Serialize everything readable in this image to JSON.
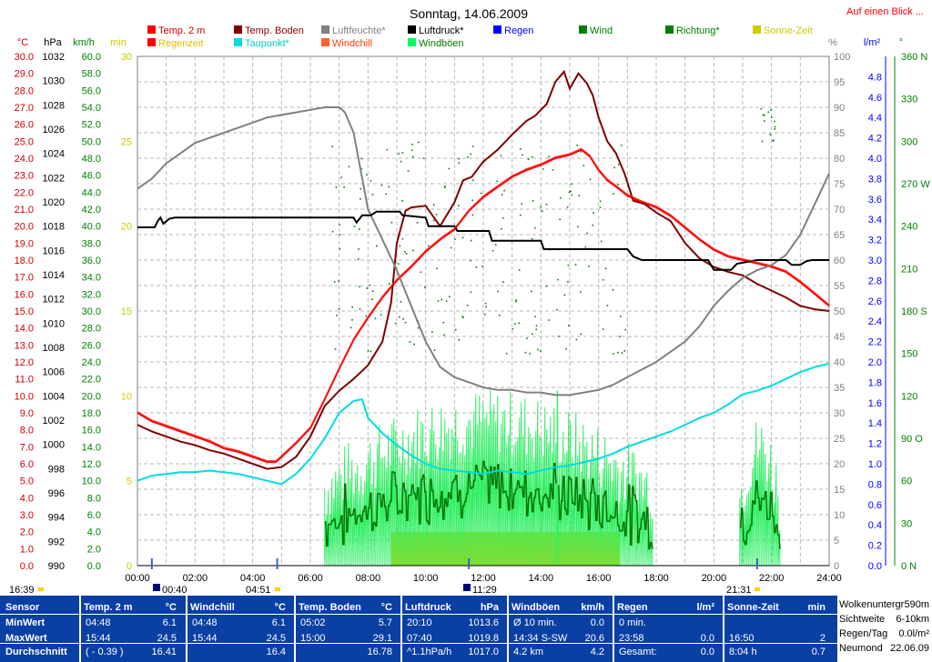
{
  "title": "Sonntag, 14.06.2009",
  "top_link": "Auf einen Blick ...",
  "legend": [
    {
      "label": "Temp. 2 m",
      "color": "#ff0000",
      "text_color": "#cc0000"
    },
    {
      "label": "Temp. Boden",
      "color": "#800000",
      "text_color": "#800000"
    },
    {
      "label": "Luftfeuchte*",
      "color": "#808080",
      "text_color": "#808080"
    },
    {
      "label": "Luftdruck*",
      "color": "#000000",
      "text_color": "#000000"
    },
    {
      "label": "Regen",
      "color": "#0000ff",
      "text_color": "#0000ff"
    },
    {
      "label": "Wind",
      "color": "#008000",
      "text_color": "#008000"
    },
    {
      "label": "Richtung*",
      "color": "#008000",
      "text_color": "#008000"
    },
    {
      "label": "Sonne-Zeit",
      "color": "#cccc00",
      "text_color": "#cccc00"
    },
    {
      "label": "Regenzeit",
      "color": "#ff0000",
      "text_color": "#e0c000"
    },
    {
      "label": "Taupunkt*",
      "color": "#00dddd",
      "text_color": "#00cccc"
    },
    {
      "label": "Windchill",
      "color": "#ff6030",
      "text_color": "#ff4000"
    },
    {
      "label": "Windböen",
      "color": "#00ff60",
      "text_color": "#008000"
    }
  ],
  "axis_units": {
    "temp": "°C",
    "pressure": "hPa",
    "wind": "km/h",
    "minutes": "min",
    "humidity": "%",
    "rain": "l/m²",
    "direction": "°",
    "direction_max": "360 N"
  },
  "axis_ticks": {
    "temp": [
      "30.0",
      "29.0",
      "28.0",
      "27.0",
      "26.0",
      "25.0",
      "24.0",
      "23.0",
      "22.0",
      "21.0",
      "20.0",
      "19.0",
      "18.0",
      "17.0",
      "16.0",
      "15.0",
      "14.0",
      "13.0",
      "12.0",
      "11.0",
      "10.0",
      "9.0",
      "8.0",
      "7.0",
      "6.0",
      "5.0",
      "4.0",
      "3.0",
      "2.0",
      "1.0",
      "0.0"
    ],
    "pressure": [
      "1032",
      "1030",
      "1028",
      "1026",
      "1024",
      "1022",
      "1020",
      "1018",
      "1016",
      "1014",
      "1012",
      "1010",
      "1008",
      "1006",
      "1004",
      "1002",
      "1000",
      "998",
      "996",
      "994",
      "992",
      "990"
    ],
    "wind": [
      "60.0",
      "58.0",
      "56.0",
      "54.0",
      "52.0",
      "50.0",
      "48.0",
      "46.0",
      "44.0",
      "42.0",
      "40.0",
      "38.0",
      "36.0",
      "34.0",
      "32.0",
      "30.0",
      "28.0",
      "26.0",
      "24.0",
      "22.0",
      "20.0",
      "18.0",
      "16.0",
      "14.0",
      "12.0",
      "10.0",
      "8.0",
      "6.0",
      "4.0",
      "2.0",
      "0.0"
    ],
    "minutes": [
      "30",
      "25",
      "20",
      "15",
      "10",
      "5",
      "0"
    ],
    "humidity": [
      "100",
      "95",
      "90",
      "85",
      "80",
      "75",
      "70",
      "65",
      "60",
      "55",
      "50",
      "45",
      "40",
      "35",
      "30",
      "25",
      "20",
      "15",
      "10",
      "5",
      "0"
    ],
    "rain": [
      "4.8",
      "4.6",
      "4.4",
      "4.2",
      "4.0",
      "3.8",
      "3.6",
      "3.4",
      "3.2",
      "3.0",
      "2.8",
      "2.6",
      "2.4",
      "2.2",
      "2.0",
      "1.8",
      "1.6",
      "1.4",
      "1.2",
      "1.0",
      "0.8",
      "0.6",
      "0.4",
      "0.2",
      "0.0"
    ],
    "direction": [
      "360 N",
      "330",
      "300",
      "270 W",
      "240",
      "210",
      "180 S",
      "150",
      "120",
      "90 O",
      "60",
      "30",
      "0 N"
    ],
    "time": [
      "00:00",
      "02:00",
      "04:00",
      "06:00",
      "08:00",
      "10:00",
      "12:00",
      "14:00",
      "16:00",
      "18:00",
      "20:00",
      "22:00",
      "24:00"
    ]
  },
  "sun_markers": {
    "left_label": "16:39",
    "rise_icon_label": "00:40",
    "dawn_label": "04:51",
    "noon_label": "11:29",
    "set_label": "21:31"
  },
  "chart_data": {
    "type": "line",
    "x_unit": "hours",
    "x_range": [
      0,
      24
    ],
    "series": [
      {
        "name": "Temp. 2 m",
        "axis": "temp",
        "color": "#ff0000",
        "x": [
          0,
          0.5,
          1,
          1.5,
          2,
          2.5,
          3,
          3.5,
          4,
          4.5,
          4.8,
          5,
          5.5,
          6,
          6.5,
          7,
          7.5,
          8,
          8.5,
          9,
          9.5,
          10,
          10.5,
          11,
          11.5,
          12,
          12.5,
          13,
          13.5,
          14,
          14.5,
          15,
          15.4,
          15.7,
          16,
          16.3,
          16.7,
          17,
          17.5,
          18,
          18.5,
          19,
          19.5,
          20,
          20.5,
          21,
          21.5,
          22,
          22.5,
          23,
          23.5,
          24
        ],
        "y": [
          9.0,
          8.5,
          8.2,
          7.9,
          7.6,
          7.3,
          6.9,
          6.7,
          6.4,
          6.1,
          6.1,
          6.4,
          7.2,
          8.1,
          9.8,
          11.6,
          13.3,
          14.6,
          15.8,
          16.8,
          17.6,
          18.5,
          19.2,
          19.8,
          20.9,
          21.7,
          22.3,
          22.9,
          23.3,
          23.6,
          24.0,
          24.2,
          24.5,
          24.1,
          23.3,
          22.7,
          22.2,
          21.8,
          21.4,
          21.1,
          20.6,
          19.9,
          19.2,
          18.6,
          18.2,
          18.0,
          17.8,
          17.6,
          17.3,
          16.7,
          16.0,
          15.3
        ]
      },
      {
        "name": "Temp. Boden",
        "axis": "temp",
        "color": "#800000",
        "x": [
          0,
          0.5,
          1,
          1.5,
          2,
          2.5,
          3,
          3.5,
          4,
          4.5,
          5,
          5.5,
          6,
          6.5,
          7,
          7.5,
          8,
          8.5,
          8.8,
          9,
          9.3,
          9.5,
          10,
          10.5,
          11,
          11.3,
          11.6,
          12,
          12.5,
          13,
          13.5,
          13.8,
          14.2,
          14.5,
          14.8,
          15,
          15.3,
          15.6,
          15.8,
          16,
          16.3,
          16.6,
          16.9,
          17.2,
          17.6,
          18,
          18.5,
          19,
          19.5,
          20,
          20.5,
          21,
          21.5,
          22,
          22.5,
          23,
          23.5,
          24
        ],
        "y": [
          8.3,
          7.9,
          7.6,
          7.3,
          7.1,
          6.8,
          6.6,
          6.3,
          6.0,
          5.7,
          5.8,
          6.4,
          7.6,
          9.4,
          10.3,
          11.0,
          11.8,
          13.2,
          15.5,
          19.0,
          20.9,
          21.1,
          21.2,
          20.0,
          21.4,
          22.7,
          22.9,
          23.8,
          24.5,
          25.4,
          26.2,
          26.5,
          27.2,
          28.5,
          29.1,
          28.1,
          29.0,
          28.4,
          27.7,
          26.4,
          25.0,
          24.3,
          23.1,
          21.5,
          21.3,
          20.8,
          20.3,
          19.0,
          18.1,
          17.6,
          17.3,
          17.1,
          16.6,
          16.2,
          15.8,
          15.3,
          15.1,
          15.0
        ]
      },
      {
        "name": "Luftfeuchte*",
        "axis": "humidity",
        "color": "#808080",
        "x": [
          0,
          0.5,
          1,
          1.5,
          2,
          2.5,
          3,
          3.5,
          4,
          4.5,
          5,
          5.5,
          6,
          6.5,
          7,
          7.2,
          7.5,
          7.8,
          8,
          8.5,
          9,
          9.5,
          10,
          10.5,
          11,
          11.5,
          12,
          12.5,
          13,
          13.5,
          14,
          14.5,
          15,
          15.5,
          16,
          16.5,
          17,
          17.5,
          18,
          18.5,
          19,
          19.5,
          20,
          20.5,
          21,
          21.5,
          22,
          22.5,
          23,
          23.5,
          24
        ],
        "y": [
          74,
          76,
          79,
          81,
          83,
          84,
          85,
          86,
          87,
          88,
          88.5,
          89,
          89.5,
          90,
          90,
          89,
          85,
          76,
          70,
          64,
          58,
          51,
          44,
          39,
          37,
          36,
          35,
          34.5,
          34.5,
          34,
          34,
          33.5,
          33.5,
          34,
          34.5,
          35.5,
          37,
          38.5,
          40,
          42,
          44,
          47,
          51,
          54,
          56.5,
          58,
          59,
          61,
          65,
          71,
          77
        ]
      },
      {
        "name": "Luftdruck*",
        "axis": "pressure",
        "color": "#000000",
        "x": [
          0,
          0.6,
          0.7,
          0.8,
          0.9,
          1.1,
          1.3,
          1.7,
          7.5,
          7.6,
          7.8,
          8.1,
          8.3,
          9.1,
          9.2,
          9.6,
          10.0,
          10.1,
          11.0,
          11.1,
          12.2,
          12.3,
          14.0,
          14.1,
          17.0,
          17.2,
          17.5,
          19.8,
          20.0,
          20.6,
          20.8,
          21.5,
          22.5,
          22.7,
          23.0,
          23.2,
          23.4,
          24
        ],
        "y": [
          1017.9,
          1017.9,
          1018.4,
          1018.7,
          1018.2,
          1018.6,
          1018.7,
          1018.7,
          1018.7,
          1018.3,
          1018.9,
          1018.9,
          1019.2,
          1019.2,
          1018.9,
          1018.8,
          1018.7,
          1018.0,
          1018.0,
          1017.6,
          1017.6,
          1016.8,
          1016.8,
          1016.1,
          1016.1,
          1015.5,
          1015.2,
          1015.2,
          1014.4,
          1014.4,
          1014.9,
          1015.2,
          1015.2,
          1014.8,
          1014.8,
          1015.1,
          1015.2,
          1015.2
        ]
      },
      {
        "name": "Taupunkt*",
        "axis": "temp",
        "color": "#00dddd",
        "x": [
          0,
          0.5,
          1,
          1.5,
          2,
          2.5,
          3,
          3.5,
          4,
          4.5,
          5,
          5.5,
          6,
          6.5,
          7,
          7.5,
          7.8,
          8,
          8.5,
          9,
          9.5,
          10,
          10.5,
          11,
          11.5,
          12,
          12.5,
          13,
          13.5,
          14,
          14.5,
          15,
          15.5,
          16,
          16.5,
          17,
          17.5,
          18,
          18.5,
          19,
          19.5,
          20,
          20.5,
          21,
          21.5,
          22,
          22.5,
          23,
          23.5,
          24
        ],
        "y": [
          5.0,
          5.3,
          5.4,
          5.5,
          5.5,
          5.6,
          5.5,
          5.4,
          5.2,
          5.0,
          4.8,
          5.4,
          6.3,
          7.5,
          9.0,
          9.7,
          9.8,
          8.7,
          7.8,
          7.1,
          6.5,
          6.0,
          5.7,
          5.6,
          5.5,
          5.4,
          5.6,
          5.5,
          5.4,
          5.6,
          5.8,
          5.9,
          6.1,
          6.3,
          6.6,
          7.0,
          7.3,
          7.6,
          7.9,
          8.3,
          8.7,
          9.0,
          9.5,
          10.1,
          10.3,
          10.6,
          11.0,
          11.4,
          11.7,
          11.9
        ]
      }
    ],
    "sun_bar": {
      "axis": "minutes",
      "value": 2,
      "start": 8.8,
      "end": 16.75
    },
    "wind_activity": [
      {
        "start": 6.5,
        "end": 17.9
      },
      {
        "start": 20.9,
        "end": 22.3
      }
    ],
    "wind_peak": {
      "value": 20.6,
      "x": 14.57
    },
    "direction_scatter": {
      "start": 6.7,
      "end": 17.0,
      "min_deg": 150,
      "max_deg": 300
    }
  },
  "stats_table": {
    "row_labels": [
      "Sensor",
      "MinWert",
      "MaxWert",
      "Durchschnitt"
    ],
    "blocks": [
      {
        "title": "Temp. 2 m",
        "unit": "°C",
        "rows": [
          [
            "04:48",
            "6.1"
          ],
          [
            "15:44",
            "24.5"
          ],
          [
            "( - 0.39 )",
            "16.41"
          ]
        ]
      },
      {
        "title": "Windchill",
        "unit": "°C",
        "rows": [
          [
            "04:48",
            "6.1"
          ],
          [
            "15:44",
            "24.5"
          ],
          [
            "",
            "16.4"
          ]
        ]
      },
      {
        "title": "Temp. Boden",
        "unit": "°C",
        "rows": [
          [
            "05:02",
            "5.7"
          ],
          [
            "15:00",
            "29.1"
          ],
          [
            "",
            "16.78"
          ]
        ]
      },
      {
        "title": "Luftdruck",
        "unit": "hPa",
        "rows": [
          [
            "20:10",
            "1013.6"
          ],
          [
            "07:40",
            "1019.8"
          ],
          [
            "^1.1hPa/h",
            "1017.0"
          ]
        ]
      },
      {
        "title": "Windböen",
        "unit": "km/h",
        "rows": [
          [
            "Ø 10 min.",
            "0.0"
          ],
          [
            "14:34  S-SW",
            "20.6"
          ],
          [
            "4.2 km",
            "4.2"
          ]
        ]
      },
      {
        "title": "Regen",
        "unit": "l/m²",
        "rows": [
          [
            "0 min.",
            ""
          ],
          [
            "23:58",
            "0.0"
          ],
          [
            "Gesamt:",
            "0.0"
          ]
        ]
      },
      {
        "title": "Sonne-Zeit",
        "unit": "min",
        "rows": [
          [
            "",
            ""
          ],
          [
            "16:50",
            "2"
          ],
          [
            "8:04 h",
            "0.7"
          ]
        ]
      }
    ],
    "side": [
      [
        "Wolkenuntergr",
        "590m"
      ],
      [
        "Sichtweite",
        "6-10km"
      ],
      [
        "Regen/Tag",
        "0.0l/m²"
      ],
      [
        "Neumond",
        "22.06.09"
      ]
    ]
  }
}
